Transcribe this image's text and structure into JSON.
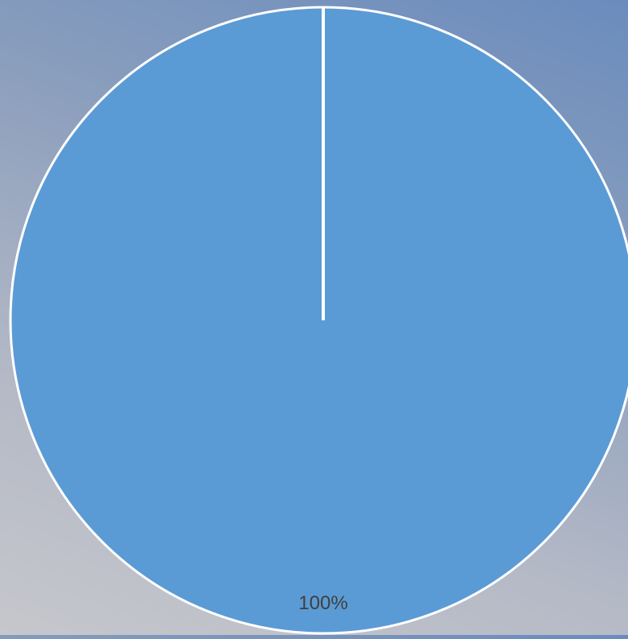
{
  "chart_data": {
    "type": "pie",
    "categories": [
      ""
    ],
    "values": [
      100
    ],
    "data_labels": [
      "100%"
    ],
    "title": "",
    "legend": "none",
    "colors": {
      "slice": "#5b9bd5",
      "border": "#ffffff",
      "label": "#3f3f3f"
    }
  }
}
